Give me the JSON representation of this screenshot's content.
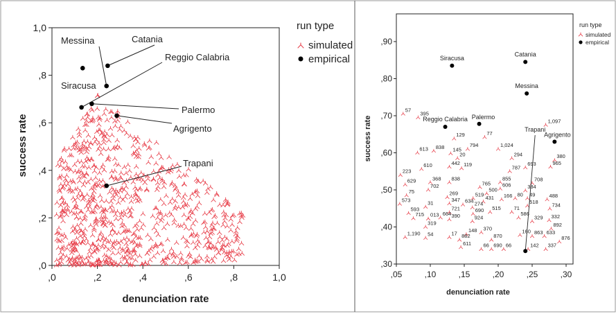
{
  "charts": [
    {
      "title": "",
      "xlabel": "denunciation rate",
      "ylabel": "success rate",
      "legend": {
        "title": "run type",
        "entries": [
          "simulated",
          "empirical"
        ],
        "placement": "right"
      }
    },
    {
      "title": "",
      "xlabel": "denunciation rate",
      "ylabel": "success rate",
      "legend": {
        "title": "run type",
        "entries": [
          "simulated",
          "empirical"
        ],
        "placement": "top-right"
      }
    }
  ],
  "colors": {
    "simulated": "#e8434e",
    "empirical": "#000000"
  },
  "chart_data": [
    {
      "type": "scatter",
      "xlim": [
        0,
        1.0
      ],
      "ylim": [
        0,
        1.0
      ],
      "xticks": [
        ",0",
        ",2",
        ",4",
        ",6",
        ",8",
        "1,0"
      ],
      "yticks": [
        ",0",
        ",2",
        ",4",
        ",6",
        ",8",
        "1,0"
      ],
      "grid": false,
      "series": [
        {
          "name": "simulated",
          "generator": {
            "count": 900,
            "x_mode": 0.2,
            "x_max": 0.86,
            "y_max": 0.72,
            "seed": 7
          }
        },
        {
          "name": "empirical",
          "points": [
            {
              "label": "Catania",
              "x": 0.245,
              "y": 0.84
            },
            {
              "label": "Siracusa",
              "x": 0.135,
              "y": 0.83
            },
            {
              "label": "Messina",
              "x": 0.24,
              "y": 0.755
            },
            {
              "label": "Reggio Calabria",
              "x": 0.13,
              "y": 0.665
            },
            {
              "label": "Palermo",
              "x": 0.175,
              "y": 0.68
            },
            {
              "label": "Agrigento",
              "x": 0.285,
              "y": 0.63
            },
            {
              "label": "Trapani",
              "x": 0.24,
              "y": 0.335
            }
          ]
        }
      ]
    },
    {
      "type": "scatter",
      "xlim": [
        0.05,
        0.31
      ],
      "ylim": [
        0.3,
        0.96
      ],
      "xticks": [
        ",05",
        ",10",
        ",15",
        ",20",
        ",25",
        ",30"
      ],
      "yticks": [
        ",30",
        ",40",
        ",50",
        ",60",
        ",70",
        ",80",
        ",90"
      ],
      "grid": false,
      "series": [
        {
          "name": "simulated",
          "points": [
            {
              "label": "57",
              "x": 0.06,
              "y": 0.705
            },
            {
              "label": "395",
              "x": 0.082,
              "y": 0.695
            },
            {
              "label": "129",
              "x": 0.135,
              "y": 0.638
            },
            {
              "label": "77",
              "x": 0.18,
              "y": 0.642
            },
            {
              "label": "838",
              "x": 0.105,
              "y": 0.605
            },
            {
              "label": "145",
              "x": 0.13,
              "y": 0.598
            },
            {
              "label": "613",
              "x": 0.081,
              "y": 0.6
            },
            {
              "label": "794",
              "x": 0.155,
              "y": 0.61
            },
            {
              "label": "1,024",
              "x": 0.2,
              "y": 0.61
            },
            {
              "label": "1,097",
              "x": 0.27,
              "y": 0.675
            },
            {
              "label": "380",
              "x": 0.283,
              "y": 0.58
            },
            {
              "label": "965",
              "x": 0.277,
              "y": 0.562
            },
            {
              "label": "20",
              "x": 0.14,
              "y": 0.585
            },
            {
              "label": "294",
              "x": 0.22,
              "y": 0.585
            },
            {
              "label": "442",
              "x": 0.128,
              "y": 0.562
            },
            {
              "label": "119",
              "x": 0.146,
              "y": 0.558
            },
            {
              "label": "610",
              "x": 0.087,
              "y": 0.556
            },
            {
              "label": "787",
              "x": 0.217,
              "y": 0.55
            },
            {
              "label": "693",
              "x": 0.24,
              "y": 0.56
            },
            {
              "label": "223",
              "x": 0.056,
              "y": 0.54
            },
            {
              "label": "368",
              "x": 0.1,
              "y": 0.52
            },
            {
              "label": "838",
              "x": 0.128,
              "y": 0.52
            },
            {
              "label": "855",
              "x": 0.203,
              "y": 0.52
            },
            {
              "label": "708",
              "x": 0.25,
              "y": 0.518
            },
            {
              "label": "629",
              "x": 0.063,
              "y": 0.514
            },
            {
              "label": "765",
              "x": 0.173,
              "y": 0.507
            },
            {
              "label": "606",
              "x": 0.203,
              "y": 0.503
            },
            {
              "label": "384",
              "x": 0.24,
              "y": 0.498
            },
            {
              "label": "702",
              "x": 0.097,
              "y": 0.5
            },
            {
              "label": "500",
              "x": 0.183,
              "y": 0.49
            },
            {
              "label": "75",
              "x": 0.065,
              "y": 0.485
            },
            {
              "label": "269",
              "x": 0.125,
              "y": 0.48
            },
            {
              "label": "519",
              "x": 0.163,
              "y": 0.477
            },
            {
              "label": "166",
              "x": 0.205,
              "y": 0.474
            },
            {
              "label": "80",
              "x": 0.225,
              "y": 0.477
            },
            {
              "label": "49",
              "x": 0.243,
              "y": 0.477
            },
            {
              "label": "488",
              "x": 0.272,
              "y": 0.474
            },
            {
              "label": "431",
              "x": 0.178,
              "y": 0.468
            },
            {
              "label": "573",
              "x": 0.055,
              "y": 0.462
            },
            {
              "label": "347",
              "x": 0.128,
              "y": 0.463
            },
            {
              "label": "634",
              "x": 0.148,
              "y": 0.46
            },
            {
              "label": "518",
              "x": 0.243,
              "y": 0.457
            },
            {
              "label": "31",
              "x": 0.093,
              "y": 0.454
            },
            {
              "label": "274",
              "x": 0.162,
              "y": 0.452
            },
            {
              "label": "734",
              "x": 0.276,
              "y": 0.449
            },
            {
              "label": "593",
              "x": 0.068,
              "y": 0.437
            },
            {
              "label": "721",
              "x": 0.128,
              "y": 0.439
            },
            {
              "label": "690",
              "x": 0.163,
              "y": 0.435
            },
            {
              "label": "515",
              "x": 0.188,
              "y": 0.44
            },
            {
              "label": "71",
              "x": 0.22,
              "y": 0.44
            },
            {
              "label": "715",
              "x": 0.075,
              "y": 0.423
            },
            {
              "label": "013",
              "x": 0.097,
              "y": 0.422
            },
            {
              "label": "664",
              "x": 0.115,
              "y": 0.425
            },
            {
              "label": "390",
              "x": 0.128,
              "y": 0.42
            },
            {
              "label": "586",
              "x": 0.23,
              "y": 0.425
            },
            {
              "label": "924",
              "x": 0.162,
              "y": 0.415
            },
            {
              "label": "329",
              "x": 0.25,
              "y": 0.415
            },
            {
              "label": "332",
              "x": 0.275,
              "y": 0.418
            },
            {
              "label": "319",
              "x": 0.093,
              "y": 0.4
            },
            {
              "label": "148",
              "x": 0.153,
              "y": 0.38
            },
            {
              "label": "370",
              "x": 0.175,
              "y": 0.385
            },
            {
              "label": "892",
              "x": 0.278,
              "y": 0.395
            },
            {
              "label": "160",
              "x": 0.232,
              "y": 0.378
            },
            {
              "label": "863",
              "x": 0.25,
              "y": 0.375
            },
            {
              "label": "633",
              "x": 0.268,
              "y": 0.375
            },
            {
              "label": "1,190",
              "x": 0.063,
              "y": 0.372
            },
            {
              "label": "54",
              "x": 0.093,
              "y": 0.37
            },
            {
              "label": "17",
              "x": 0.128,
              "y": 0.372
            },
            {
              "label": "882",
              "x": 0.143,
              "y": 0.365
            },
            {
              "label": "870",
              "x": 0.19,
              "y": 0.365
            },
            {
              "label": "876",
              "x": 0.29,
              "y": 0.36
            },
            {
              "label": "611",
              "x": 0.145,
              "y": 0.345
            },
            {
              "label": "66",
              "x": 0.175,
              "y": 0.34
            },
            {
              "label": "690",
              "x": 0.19,
              "y": 0.34
            },
            {
              "label": "66",
              "x": 0.208,
              "y": 0.34
            },
            {
              "label": "142",
              "x": 0.244,
              "y": 0.34
            },
            {
              "label": "337",
              "x": 0.27,
              "y": 0.34
            }
          ]
        },
        {
          "name": "empirical",
          "points": [
            {
              "label": "Siracusa",
              "x": 0.132,
              "y": 0.835
            },
            {
              "label": "Catania",
              "x": 0.24,
              "y": 0.845
            },
            {
              "label": "Messina",
              "x": 0.242,
              "y": 0.76
            },
            {
              "label": "Reggio Calabria",
              "x": 0.122,
              "y": 0.67
            },
            {
              "label": "Palermo",
              "x": 0.172,
              "y": 0.678
            },
            {
              "label": "Agrigento",
              "x": 0.283,
              "y": 0.63
            },
            {
              "label": "Trapani",
              "x": 0.24,
              "y": 0.335
            }
          ]
        }
      ]
    }
  ]
}
